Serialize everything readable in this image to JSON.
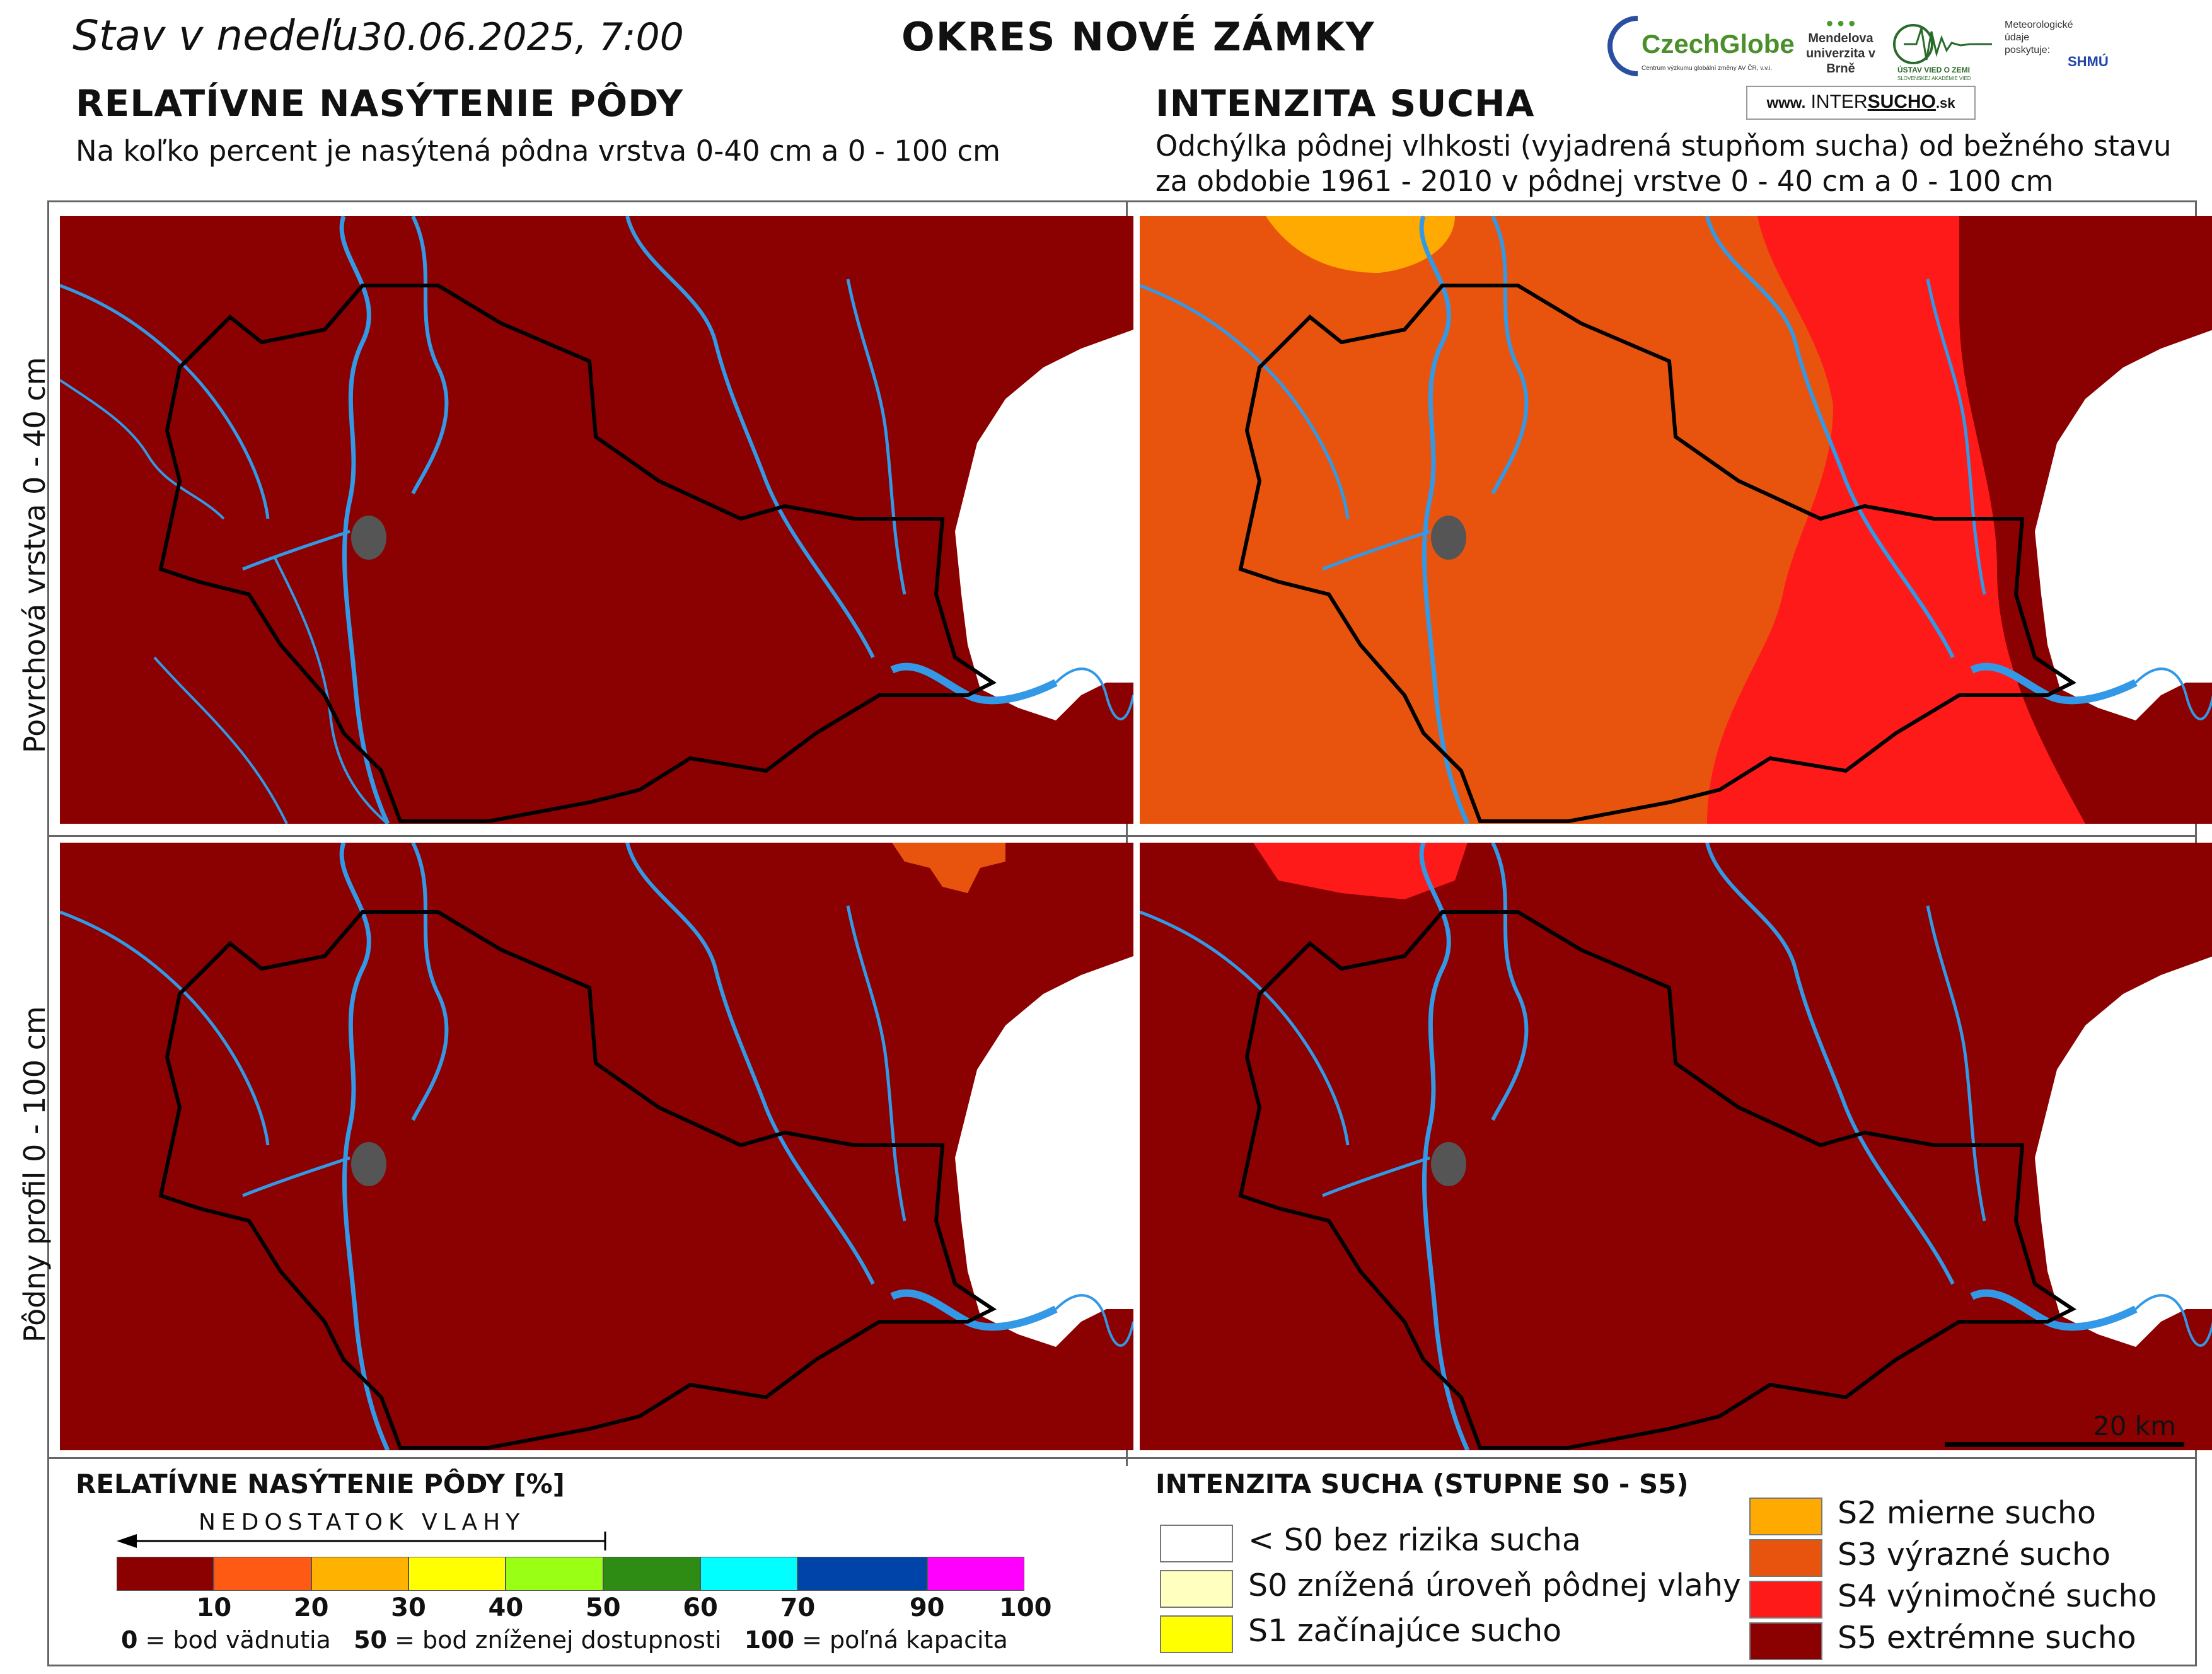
{
  "header": {
    "date_prefix": "Stav v nedeľu",
    "date_value": "30.06.2025, 7:00",
    "district": "OKRES  NOVÉ ZÁMKY",
    "logos": {
      "czechglobe": "CzechGlobe",
      "czechglobe_sub": "Centrum výzkumu globální změny AV ČR, v.v.i.",
      "mendel": "Mendelova univerzita v Brně",
      "uvz": "ÚSTAV VIED O ZEMI",
      "uvz_sub": "SLOVENSKEJ AKADÉMIE VIED",
      "met": "Meteorologické údaje poskytuje:",
      "shmu": "SHMÚ",
      "intersucho_pre": "www.",
      "intersucho_mid": "INTER",
      "intersucho_bold": "SUCHO",
      "intersucho_post": ".sk"
    }
  },
  "left_column": {
    "title": "RELATÍVNE NASÝTENIE PÔDY",
    "subtitle": "Na koľko percent je nasýtená pôdna vrstva 0-40 cm a 0 - 100 cm"
  },
  "right_column": {
    "title": "INTENZITA SUCHA",
    "subtitle_line1": "Odchýlka pôdnej vlhkosti (vyjadrená stupňom sucha) od bežného stavu",
    "subtitle_line2": "za obdobie 1961 - 2010 v pôdnej vrstve 0 - 40 cm a 0 - 100 cm"
  },
  "rows": {
    "top": "Povrchová vrstva 0 - 40 cm",
    "bottom": "Pôdny profil 0 - 100 cm"
  },
  "scale_bar": "20 km",
  "map_colors": {
    "s5": "#8b0000",
    "s4": "#ff1a1a",
    "s3": "#e8540e",
    "s2": "#ffaa00",
    "river": "#3399e6",
    "border": "#000000",
    "lake": "#555555"
  },
  "saturation_legend": {
    "title": "RELATÍVNE NASÝTENIE PÔDY [%]",
    "arrow_text": "NEDOSTATOK VLAHY",
    "bins": [
      {
        "to": "10",
        "color": "#8b0000"
      },
      {
        "to": "20",
        "color": "#ff5a14"
      },
      {
        "to": "30",
        "color": "#ffb300"
      },
      {
        "to": "40",
        "color": "#ffff00"
      },
      {
        "to": "50",
        "color": "#99ff14"
      },
      {
        "to": "60",
        "color": "#2e8b14"
      },
      {
        "to": "70",
        "color": "#00ffff"
      },
      {
        "to": "90",
        "color": "#0044aa"
      },
      {
        "to": "100",
        "color": "#ff00ff"
      }
    ],
    "note_0_num": "0",
    "note_0_text": "= bod vädnutia",
    "note_50_num": "50",
    "note_50_text": "= bod zníženej dostupnosti",
    "note_100_num": "100",
    "note_100_text": "= poľná kapacita"
  },
  "drought_legend": {
    "title": "INTENZITA SUCHA (STUPNE S0 - S5)",
    "items_left": [
      {
        "label": "< S0 bez rizika sucha",
        "color": "#ffffff"
      },
      {
        "label": "S0 znížená úroveň pôdnej vlahy",
        "color": "#ffffc0"
      },
      {
        "label": "S1 začínajúce sucho",
        "color": "#ffff00"
      }
    ],
    "items_right": [
      {
        "label": "S2 mierne sucho",
        "color": "#ffaa00"
      },
      {
        "label": "S3 výrazné sucho",
        "color": "#e8540e"
      },
      {
        "label": "S4 výnimočné sucho",
        "color": "#ff1a1a"
      },
      {
        "label": "S5 extrémne sucho",
        "color": "#8b0000"
      }
    ]
  }
}
